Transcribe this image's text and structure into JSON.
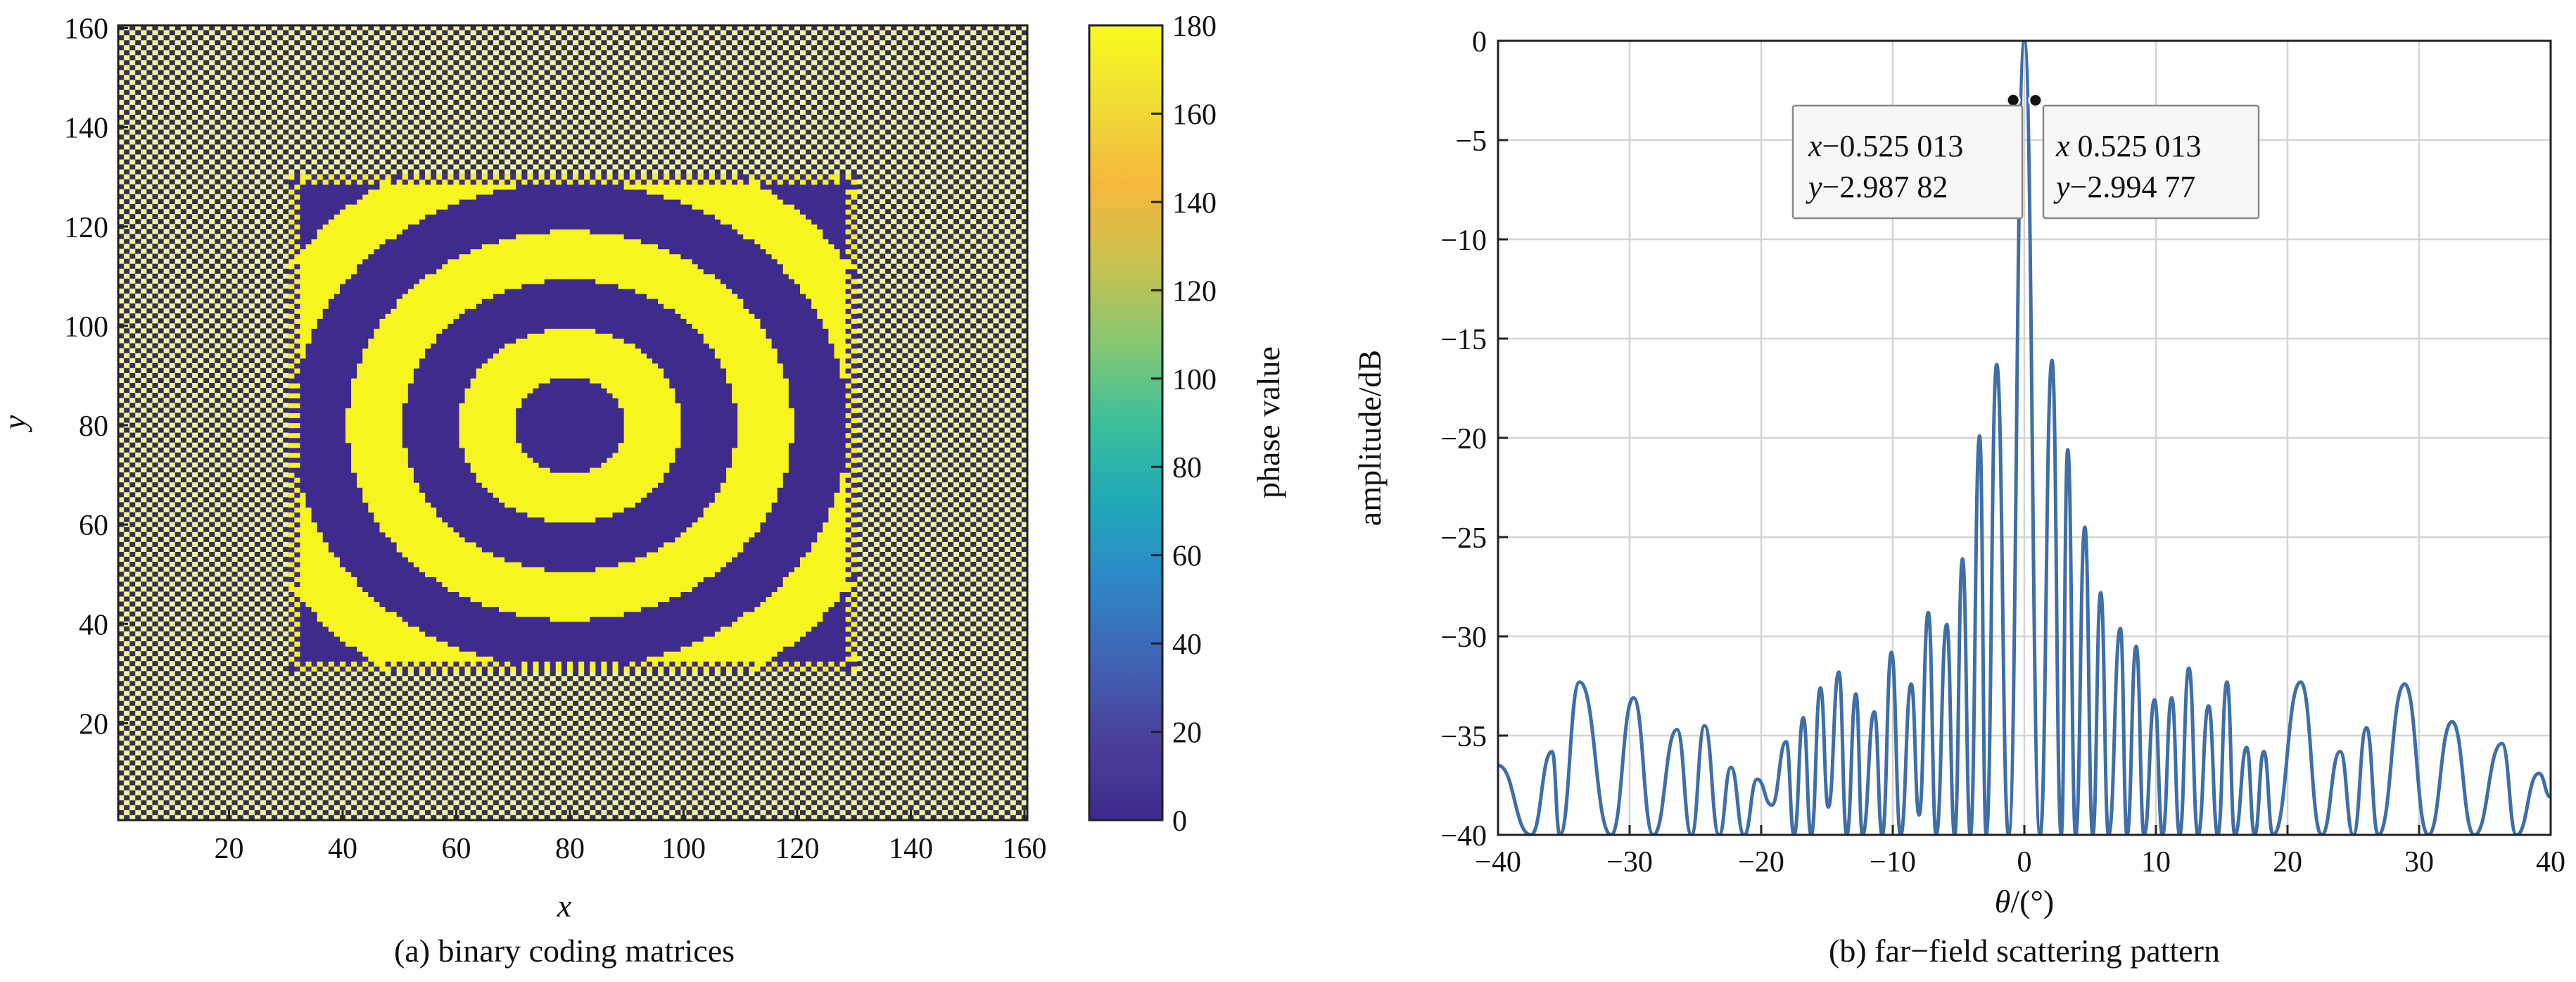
{
  "chart_data": [
    {
      "type": "heatmap",
      "caption": "(a) binary coding matrices",
      "xlabel": "x",
      "ylabel": "y",
      "xlim": [
        1,
        160
      ],
      "ylim": [
        1,
        160
      ],
      "xticks": [
        20,
        40,
        60,
        80,
        100,
        120,
        140,
        160
      ],
      "yticks": [
        20,
        40,
        60,
        80,
        100,
        120,
        140,
        160
      ],
      "grid_size": 160,
      "phase_levels": [
        0,
        180
      ],
      "background_pattern": "checkerboard",
      "inner_region": {
        "x": [
          31,
          130
        ],
        "y": [
          31,
          130
        ]
      },
      "ring_center": [
        80,
        80
      ],
      "ring_period": 9.8,
      "colorbar": {
        "label": "phase value",
        "range": [
          0,
          180
        ],
        "ticks": [
          0,
          20,
          40,
          60,
          80,
          100,
          120,
          140,
          160,
          180
        ],
        "colors": [
          "#3e2a8a",
          "#4a3f98",
          "#4063b3",
          "#2d86c8",
          "#1fa8b8",
          "#3bbf9a",
          "#86c770",
          "#c9c14f",
          "#f6b73c",
          "#f0dc35",
          "#f9fa1e"
        ]
      },
      "colors": {
        "phase_0": "#3f2b8c",
        "phase_180": "#f7f51e",
        "bg_dark": "#303050",
        "bg_light": "#f5f3a0"
      }
    },
    {
      "type": "line",
      "caption": "(b) far−field scattering pattern",
      "xlabel_sym": "θ",
      "xlabel_unit": "/(°)",
      "ylabel": "amplitude/dB",
      "xlim": [
        -40,
        40
      ],
      "ylim": [
        -40,
        0
      ],
      "xticks": [
        -40,
        -30,
        -20,
        -10,
        0,
        10,
        20,
        30,
        40
      ],
      "yticks": [
        0,
        -5,
        -10,
        -15,
        -20,
        -25,
        -30,
        -35,
        -40
      ],
      "grid": true,
      "line_color": "#3f6ea8",
      "series": [
        {
          "values": [
            [
              -40,
              -36.5
            ],
            [
              -37.5,
              -40
            ],
            [
              -35.9,
              -35.8
            ],
            [
              -35.3,
              -40
            ],
            [
              -33.8,
              -32.3
            ],
            [
              -31.4,
              -40
            ],
            [
              -29.7,
              -33.1
            ],
            [
              -28.2,
              -40
            ],
            [
              -26.4,
              -34.7
            ],
            [
              -25.3,
              -40
            ],
            [
              -24.3,
              -34.5
            ],
            [
              -23.2,
              -40
            ],
            [
              -22.3,
              -36.6
            ],
            [
              -21.3,
              -40
            ],
            [
              -20.3,
              -37.2
            ],
            [
              -19.2,
              -38.5
            ],
            [
              -18.1,
              -35.3
            ],
            [
              -17.5,
              -40
            ],
            [
              -16.8,
              -34.1
            ],
            [
              -16.2,
              -40
            ],
            [
              -15.5,
              -32.6
            ],
            [
              -14.9,
              -38.6
            ],
            [
              -14.1,
              -31.8
            ],
            [
              -13.5,
              -40
            ],
            [
              -12.8,
              -32.9
            ],
            [
              -12.3,
              -40
            ],
            [
              -11.4,
              -33.8
            ],
            [
              -10.8,
              -40
            ],
            [
              -10.1,
              -30.8
            ],
            [
              -9.4,
              -40
            ],
            [
              -8.6,
              -32.4
            ],
            [
              -8.0,
              -39.0
            ],
            [
              -7.3,
              -28.8
            ],
            [
              -6.7,
              -40
            ],
            [
              -5.9,
              -29.4
            ],
            [
              -5.3,
              -40
            ],
            [
              -4.7,
              -26.1
            ],
            [
              -4.1,
              -40
            ],
            [
              -3.4,
              -19.9
            ],
            [
              -2.9,
              -40
            ],
            [
              -2.1,
              -16.3
            ],
            [
              -1.2,
              -40
            ],
            [
              0,
              0
            ],
            [
              1.2,
              -40
            ],
            [
              2.1,
              -16.1
            ],
            [
              2.8,
              -40
            ],
            [
              3.3,
              -20.6
            ],
            [
              3.9,
              -40
            ],
            [
              4.6,
              -24.5
            ],
            [
              5.2,
              -40
            ],
            [
              5.8,
              -27.8
            ],
            [
              6.4,
              -40
            ],
            [
              7.3,
              -29.6
            ],
            [
              7.8,
              -40
            ],
            [
              8.5,
              -30.5
            ],
            [
              9.1,
              -40
            ],
            [
              9.9,
              -33.2
            ],
            [
              10.5,
              -40
            ],
            [
              11.2,
              -33.1
            ],
            [
              11.8,
              -40
            ],
            [
              12.5,
              -31.6
            ],
            [
              13.2,
              -40
            ],
            [
              14.0,
              -33.5
            ],
            [
              14.7,
              -40
            ],
            [
              15.4,
              -32.3
            ],
            [
              16.0,
              -40
            ],
            [
              16.9,
              -35.6
            ],
            [
              17.5,
              -40
            ],
            [
              18.2,
              -35.8
            ],
            [
              18.9,
              -40
            ],
            [
              21.0,
              -32.3
            ],
            [
              22.6,
              -40
            ],
            [
              24.0,
              -35.8
            ],
            [
              25.0,
              -40
            ],
            [
              26.0,
              -34.6
            ],
            [
              26.9,
              -40
            ],
            [
              28.9,
              -32.4
            ],
            [
              30.7,
              -40
            ],
            [
              32.5,
              -34.3
            ],
            [
              34.2,
              -40
            ],
            [
              36.3,
              -35.4
            ],
            [
              37.4,
              -40
            ],
            [
              39.1,
              -36.9
            ],
            [
              40,
              -38.1
            ]
          ]
        }
      ],
      "datatips": [
        {
          "x_label": "x",
          "x_value": "−0.525 013",
          "y_label": "y",
          "y_value": "−2.987 82",
          "x": -0.525013,
          "y": -2.98782,
          "side": "left"
        },
        {
          "x_label": "x",
          "x_value": " 0.525 013",
          "y_label": "y",
          "y_value": "−2.994 77",
          "x": 0.525013,
          "y": -2.99477,
          "side": "right"
        }
      ]
    }
  ]
}
